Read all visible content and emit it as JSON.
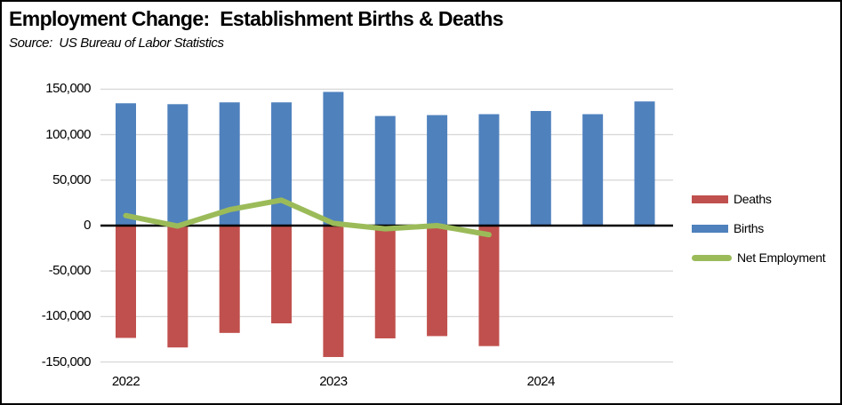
{
  "header": {
    "title": "Employment Change:  Establishment Births & Deaths",
    "source": "Source:  US Bureau of Labor Statistics"
  },
  "chart_data": {
    "type": "combo-bar-line",
    "n_categories": 11,
    "categories_note": "quarterly bars; only year labels shown on axis",
    "x_tick_labels": [
      {
        "label": "2022",
        "index": 0
      },
      {
        "label": "2023",
        "index": 4
      },
      {
        "label": "2024",
        "index": 8
      }
    ],
    "series": [
      {
        "name": "Deaths",
        "type": "bar",
        "color": "#C0504D",
        "values": [
          -123500,
          -134000,
          -118000,
          -107500,
          -144500,
          -124000,
          -121500,
          -132500,
          null,
          null,
          null
        ]
      },
      {
        "name": "Births",
        "type": "bar",
        "color": "#4F81BD",
        "values": [
          134500,
          133500,
          135500,
          135500,
          147000,
          120500,
          121500,
          122500,
          126000,
          122500,
          136500
        ]
      },
      {
        "name": "Net Employment",
        "type": "line",
        "color": "#9BBB59",
        "values": [
          11000,
          -500,
          17500,
          28000,
          2500,
          -3500,
          0,
          -10000,
          null,
          null,
          null
        ]
      }
    ],
    "ylim": [
      -150000,
      150000
    ],
    "ytick_step": 50000,
    "y_tick_labels": [
      "150,000",
      "100,000",
      "50,000",
      "0",
      "-50,000",
      "-100,000",
      "-150,000"
    ],
    "grid": true,
    "gridline_color": "#D9D9D9",
    "zero_axis_color": "#000000",
    "legend_position": "right"
  }
}
